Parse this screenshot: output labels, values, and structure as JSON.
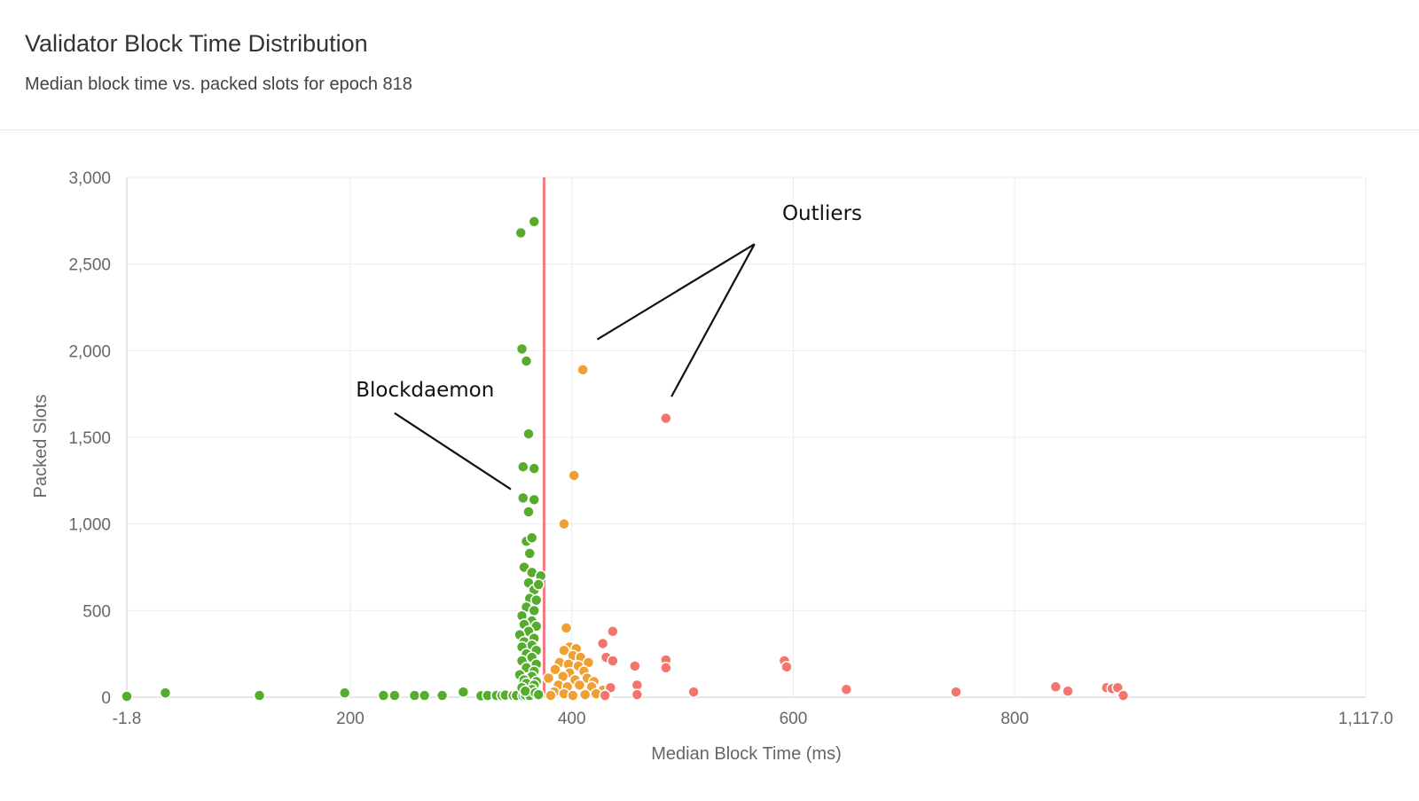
{
  "header": {
    "title": "Validator Block Time Distribution",
    "subtitle": "Median block time vs. packed slots for epoch 818"
  },
  "chart_data": {
    "type": "scatter",
    "title": "Validator Block Time Distribution",
    "subtitle": "Median block time vs. packed slots for epoch 818",
    "xlabel": "Median Block Time (ms)",
    "ylabel": "Packed Slots",
    "xlim": [
      -1.8,
      1117.0
    ],
    "ylim": [
      0,
      3000
    ],
    "x_ticks": [
      -1.8,
      200,
      400,
      600,
      800,
      1117.0
    ],
    "x_tick_labels": [
      "-1.8",
      "200",
      "400",
      "600",
      "800",
      "1,117.0"
    ],
    "y_ticks": [
      0,
      500,
      1000,
      1500,
      2000,
      2500,
      3000
    ],
    "y_tick_labels": [
      "0",
      "500",
      "1,000",
      "1,500",
      "2,000",
      "2,500",
      "3,000"
    ],
    "grid": true,
    "reference_line": {
      "x": 375,
      "color": "#f07b84"
    },
    "colors": {
      "green": "#56ad2d",
      "orange": "#eea032",
      "red": "#f4756b"
    },
    "annotations": [
      {
        "text": "Outliers",
        "x": 590,
        "y": 2755,
        "lines": [
          [
            [
              565,
              2615
            ],
            [
              423,
              2065
            ]
          ],
          [
            [
              565,
              2615
            ],
            [
              490,
              1735
            ]
          ]
        ]
      },
      {
        "text": "Blockdaemon",
        "x": 205,
        "y": 1735,
        "lines": [
          [
            [
              240,
              1640
            ],
            [
              345,
              1200
            ]
          ]
        ]
      }
    ],
    "series": [
      {
        "color": "green",
        "points": [
          [
            -1.8,
            5
          ],
          [
            33,
            25
          ],
          [
            118,
            10
          ],
          [
            195,
            25
          ],
          [
            230,
            10
          ],
          [
            240,
            10
          ],
          [
            258,
            10
          ],
          [
            267,
            10
          ],
          [
            283,
            10
          ],
          [
            302,
            30
          ],
          [
            318,
            8
          ],
          [
            324,
            10
          ],
          [
            332,
            10
          ],
          [
            337,
            10
          ],
          [
            340,
            12
          ],
          [
            347,
            10
          ],
          [
            350,
            10
          ],
          [
            356,
            8
          ],
          [
            358,
            12
          ],
          [
            362,
            10
          ],
          [
            354,
            2680
          ],
          [
            366,
            2745
          ],
          [
            355,
            2010
          ],
          [
            359,
            1940
          ],
          [
            361,
            1520
          ],
          [
            356,
            1330
          ],
          [
            366,
            1320
          ],
          [
            356,
            1150
          ],
          [
            366,
            1140
          ],
          [
            361,
            1070
          ],
          [
            359,
            900
          ],
          [
            364,
            920
          ],
          [
            362,
            830
          ],
          [
            357,
            750
          ],
          [
            364,
            720
          ],
          [
            372,
            700
          ],
          [
            361,
            660
          ],
          [
            366,
            620
          ],
          [
            370,
            650
          ],
          [
            362,
            570
          ],
          [
            368,
            560
          ],
          [
            359,
            520
          ],
          [
            366,
            500
          ],
          [
            355,
            470
          ],
          [
            364,
            440
          ],
          [
            357,
            420
          ],
          [
            368,
            410
          ],
          [
            361,
            380
          ],
          [
            353,
            360
          ],
          [
            366,
            340
          ],
          [
            357,
            320
          ],
          [
            364,
            300
          ],
          [
            355,
            290
          ],
          [
            368,
            270
          ],
          [
            359,
            250
          ],
          [
            364,
            230
          ],
          [
            355,
            210
          ],
          [
            368,
            190
          ],
          [
            359,
            170
          ],
          [
            366,
            150
          ],
          [
            353,
            130
          ],
          [
            364,
            120
          ],
          [
            357,
            100
          ],
          [
            368,
            90
          ],
          [
            359,
            80
          ],
          [
            366,
            70
          ],
          [
            355,
            55
          ],
          [
            364,
            45
          ],
          [
            358,
            35
          ],
          [
            367,
            25
          ],
          [
            370,
            15
          ]
        ]
      },
      {
        "color": "orange",
        "points": [
          [
            410,
            1890
          ],
          [
            402,
            1280
          ],
          [
            393,
            1000
          ],
          [
            395,
            400
          ],
          [
            398,
            290
          ],
          [
            404,
            280
          ],
          [
            393,
            270
          ],
          [
            401,
            240
          ],
          [
            408,
            230
          ],
          [
            389,
            200
          ],
          [
            397,
            190
          ],
          [
            406,
            180
          ],
          [
            415,
            200
          ],
          [
            385,
            160
          ],
          [
            398,
            140
          ],
          [
            411,
            150
          ],
          [
            379,
            110
          ],
          [
            392,
            120
          ],
          [
            403,
            100
          ],
          [
            414,
            110
          ],
          [
            420,
            90
          ],
          [
            388,
            70
          ],
          [
            396,
            60
          ],
          [
            407,
            70
          ],
          [
            418,
            60
          ],
          [
            428,
            40
          ],
          [
            384,
            30
          ],
          [
            393,
            20
          ],
          [
            401,
            10
          ],
          [
            412,
            15
          ],
          [
            422,
            20
          ],
          [
            381,
            10
          ],
          [
            431,
            12
          ]
        ]
      },
      {
        "color": "red",
        "points": [
          [
            485,
            1610
          ],
          [
            437,
            380
          ],
          [
            428,
            310
          ],
          [
            431,
            230
          ],
          [
            437,
            210
          ],
          [
            457,
            180
          ],
          [
            485,
            215
          ],
          [
            485,
            170
          ],
          [
            592,
            210
          ],
          [
            594,
            175
          ],
          [
            459,
            70
          ],
          [
            459,
            15
          ],
          [
            435,
            55
          ],
          [
            430,
            10
          ],
          [
            510,
            30
          ],
          [
            648,
            45
          ],
          [
            747,
            30
          ],
          [
            837,
            60
          ],
          [
            848,
            35
          ],
          [
            883,
            55
          ],
          [
            888,
            50
          ],
          [
            893,
            55
          ],
          [
            898,
            10
          ]
        ]
      }
    ]
  }
}
